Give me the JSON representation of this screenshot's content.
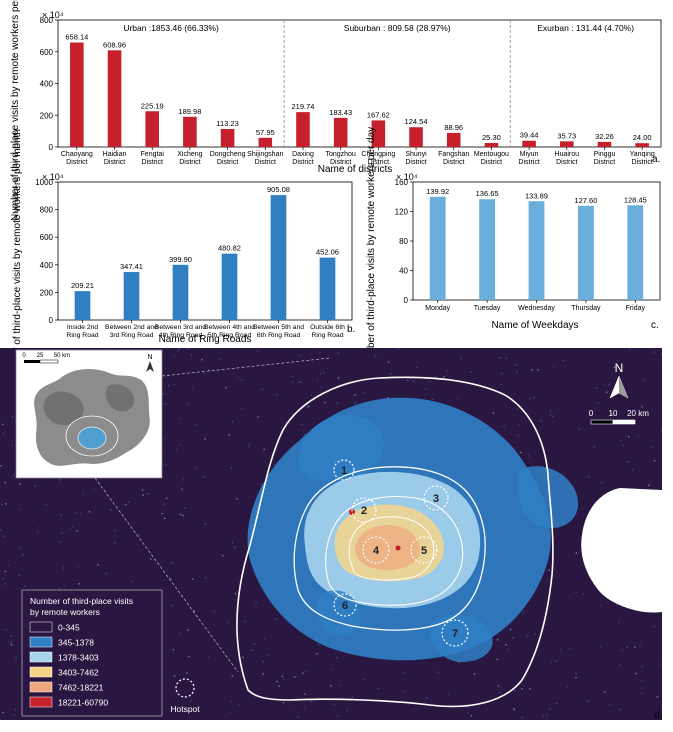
{
  "figure": {
    "colors": {
      "bar_red": "#c5202b",
      "bar_blue_dark": "#2f7fc1",
      "bar_blue_light": "#6aaedc",
      "map_background": "#2a1741",
      "ring_white": "#ffffff"
    },
    "panel_labels": {
      "a": "a.",
      "b": "b.",
      "c": "c.",
      "d": "d."
    }
  },
  "chart_data": [
    {
      "id": "a",
      "type": "bar",
      "ylabel": "Number of  third-place visits by remote workers per month",
      "xlabel": "Name of districts",
      "yscale_note": "× 10⁴",
      "ylim": [
        0,
        800
      ],
      "yticks": [
        0,
        200,
        400,
        600,
        800
      ],
      "groups": [
        {
          "label": "Urban :1853.46 (66.33%)",
          "start": 0,
          "end": 5
        },
        {
          "label": "Suburban : 809.58 (28.97%)",
          "start": 6,
          "end": 11
        },
        {
          "label": "Exurban : 131.44 (4.70%)",
          "start": 12,
          "end": 15
        }
      ],
      "categories": [
        [
          "Chaoyang",
          "District"
        ],
        [
          "Haidian",
          "District"
        ],
        [
          "Fengtai",
          "District"
        ],
        [
          "Xicheng",
          "District"
        ],
        [
          "Dongcheng",
          "District"
        ],
        [
          "Shijingshan",
          "District"
        ],
        [
          "Daxing",
          "District"
        ],
        [
          "Tongzhou",
          "District"
        ],
        [
          "Changping",
          "District"
        ],
        [
          "Shunyi",
          "District"
        ],
        [
          "Fangshan",
          "District"
        ],
        [
          "Mentougou",
          "District"
        ],
        [
          "Miyun",
          "District"
        ],
        [
          "Huairou",
          "District"
        ],
        [
          "Pinggu",
          "District"
        ],
        [
          "Yanqing",
          "District"
        ]
      ],
      "values": [
        658.14,
        608.96,
        225.19,
        189.98,
        113.23,
        57.95,
        219.74,
        183.43,
        167.62,
        124.54,
        88.96,
        25.3,
        39.44,
        35.73,
        32.26,
        24.0
      ],
      "value_labels": [
        "658.14",
        "608.96",
        "225.19",
        "189.98",
        "113.23",
        "57.95",
        "219.74",
        "183.43",
        "167.62",
        "124.54",
        "88.96",
        "25.30",
        "39.44",
        "35.73",
        "32.26",
        "24.00"
      ]
    },
    {
      "id": "b",
      "type": "bar",
      "ylabel": "Number of  third-place visits by remote workers per month",
      "xlabel": "Name of Ring Roads",
      "yscale_note": "× 10⁴",
      "ylim": [
        0,
        1000
      ],
      "yticks": [
        0,
        200,
        400,
        600,
        800,
        1000
      ],
      "categories": [
        [
          "Inside 2nd",
          "Ring Road"
        ],
        [
          "Between 2nd and",
          "3rd Ring Road"
        ],
        [
          "Between 3rd and",
          "4th Ring Road"
        ],
        [
          "Between 4th and",
          "5th Ring Road"
        ],
        [
          "Between 5th and",
          "6th Ring Road"
        ],
        [
          "Outside 6th",
          "Ring Road"
        ]
      ],
      "values": [
        209.21,
        347.41,
        399.9,
        480.82,
        905.08,
        452.06
      ],
      "value_labels": [
        "209.21",
        "347.41",
        "399.90",
        "480.82",
        "905.08",
        "452.06"
      ]
    },
    {
      "id": "c",
      "type": "bar",
      "ylabel": "Number of  third-place visits by remote workers per day",
      "xlabel": "Name of Weekdays",
      "yscale_note": "× 10⁴",
      "ylim": [
        0,
        160
      ],
      "yticks": [
        0,
        40,
        80,
        120,
        160
      ],
      "categories": [
        [
          "Monday"
        ],
        [
          "Tuesday"
        ],
        [
          "Wednesday"
        ],
        [
          "Thursday"
        ],
        [
          "Friday"
        ]
      ],
      "values": [
        139.92,
        136.65,
        133.89,
        127.6,
        128.45
      ],
      "value_labels": [
        "139.92",
        "136.65",
        "133.89",
        "127.60",
        "128.45"
      ]
    }
  ],
  "map": {
    "legend": {
      "title_line1": "Number of third-place visits",
      "title_line2": "by remote workers",
      "classes": [
        {
          "label": "0-345",
          "color": "#2a1741"
        },
        {
          "label": "345-1378",
          "color": "#2f80c6"
        },
        {
          "label": "1378-3403",
          "color": "#a9d5ee"
        },
        {
          "label": "3403-7462",
          "color": "#f6d58a"
        },
        {
          "label": "7462-18221",
          "color": "#f0a67f"
        },
        {
          "label": "18221-60790",
          "color": "#c5202b"
        }
      ],
      "hotspot_label": "Hotspot"
    },
    "hotspots": [
      "1",
      "2",
      "3",
      "4",
      "5",
      "6",
      "7"
    ],
    "scale_main": {
      "ticks": [
        "0",
        "10",
        "20 km"
      ]
    },
    "scale_inset": {
      "ticks": [
        "0",
        "25",
        "50 km"
      ]
    },
    "north_label": "N"
  }
}
